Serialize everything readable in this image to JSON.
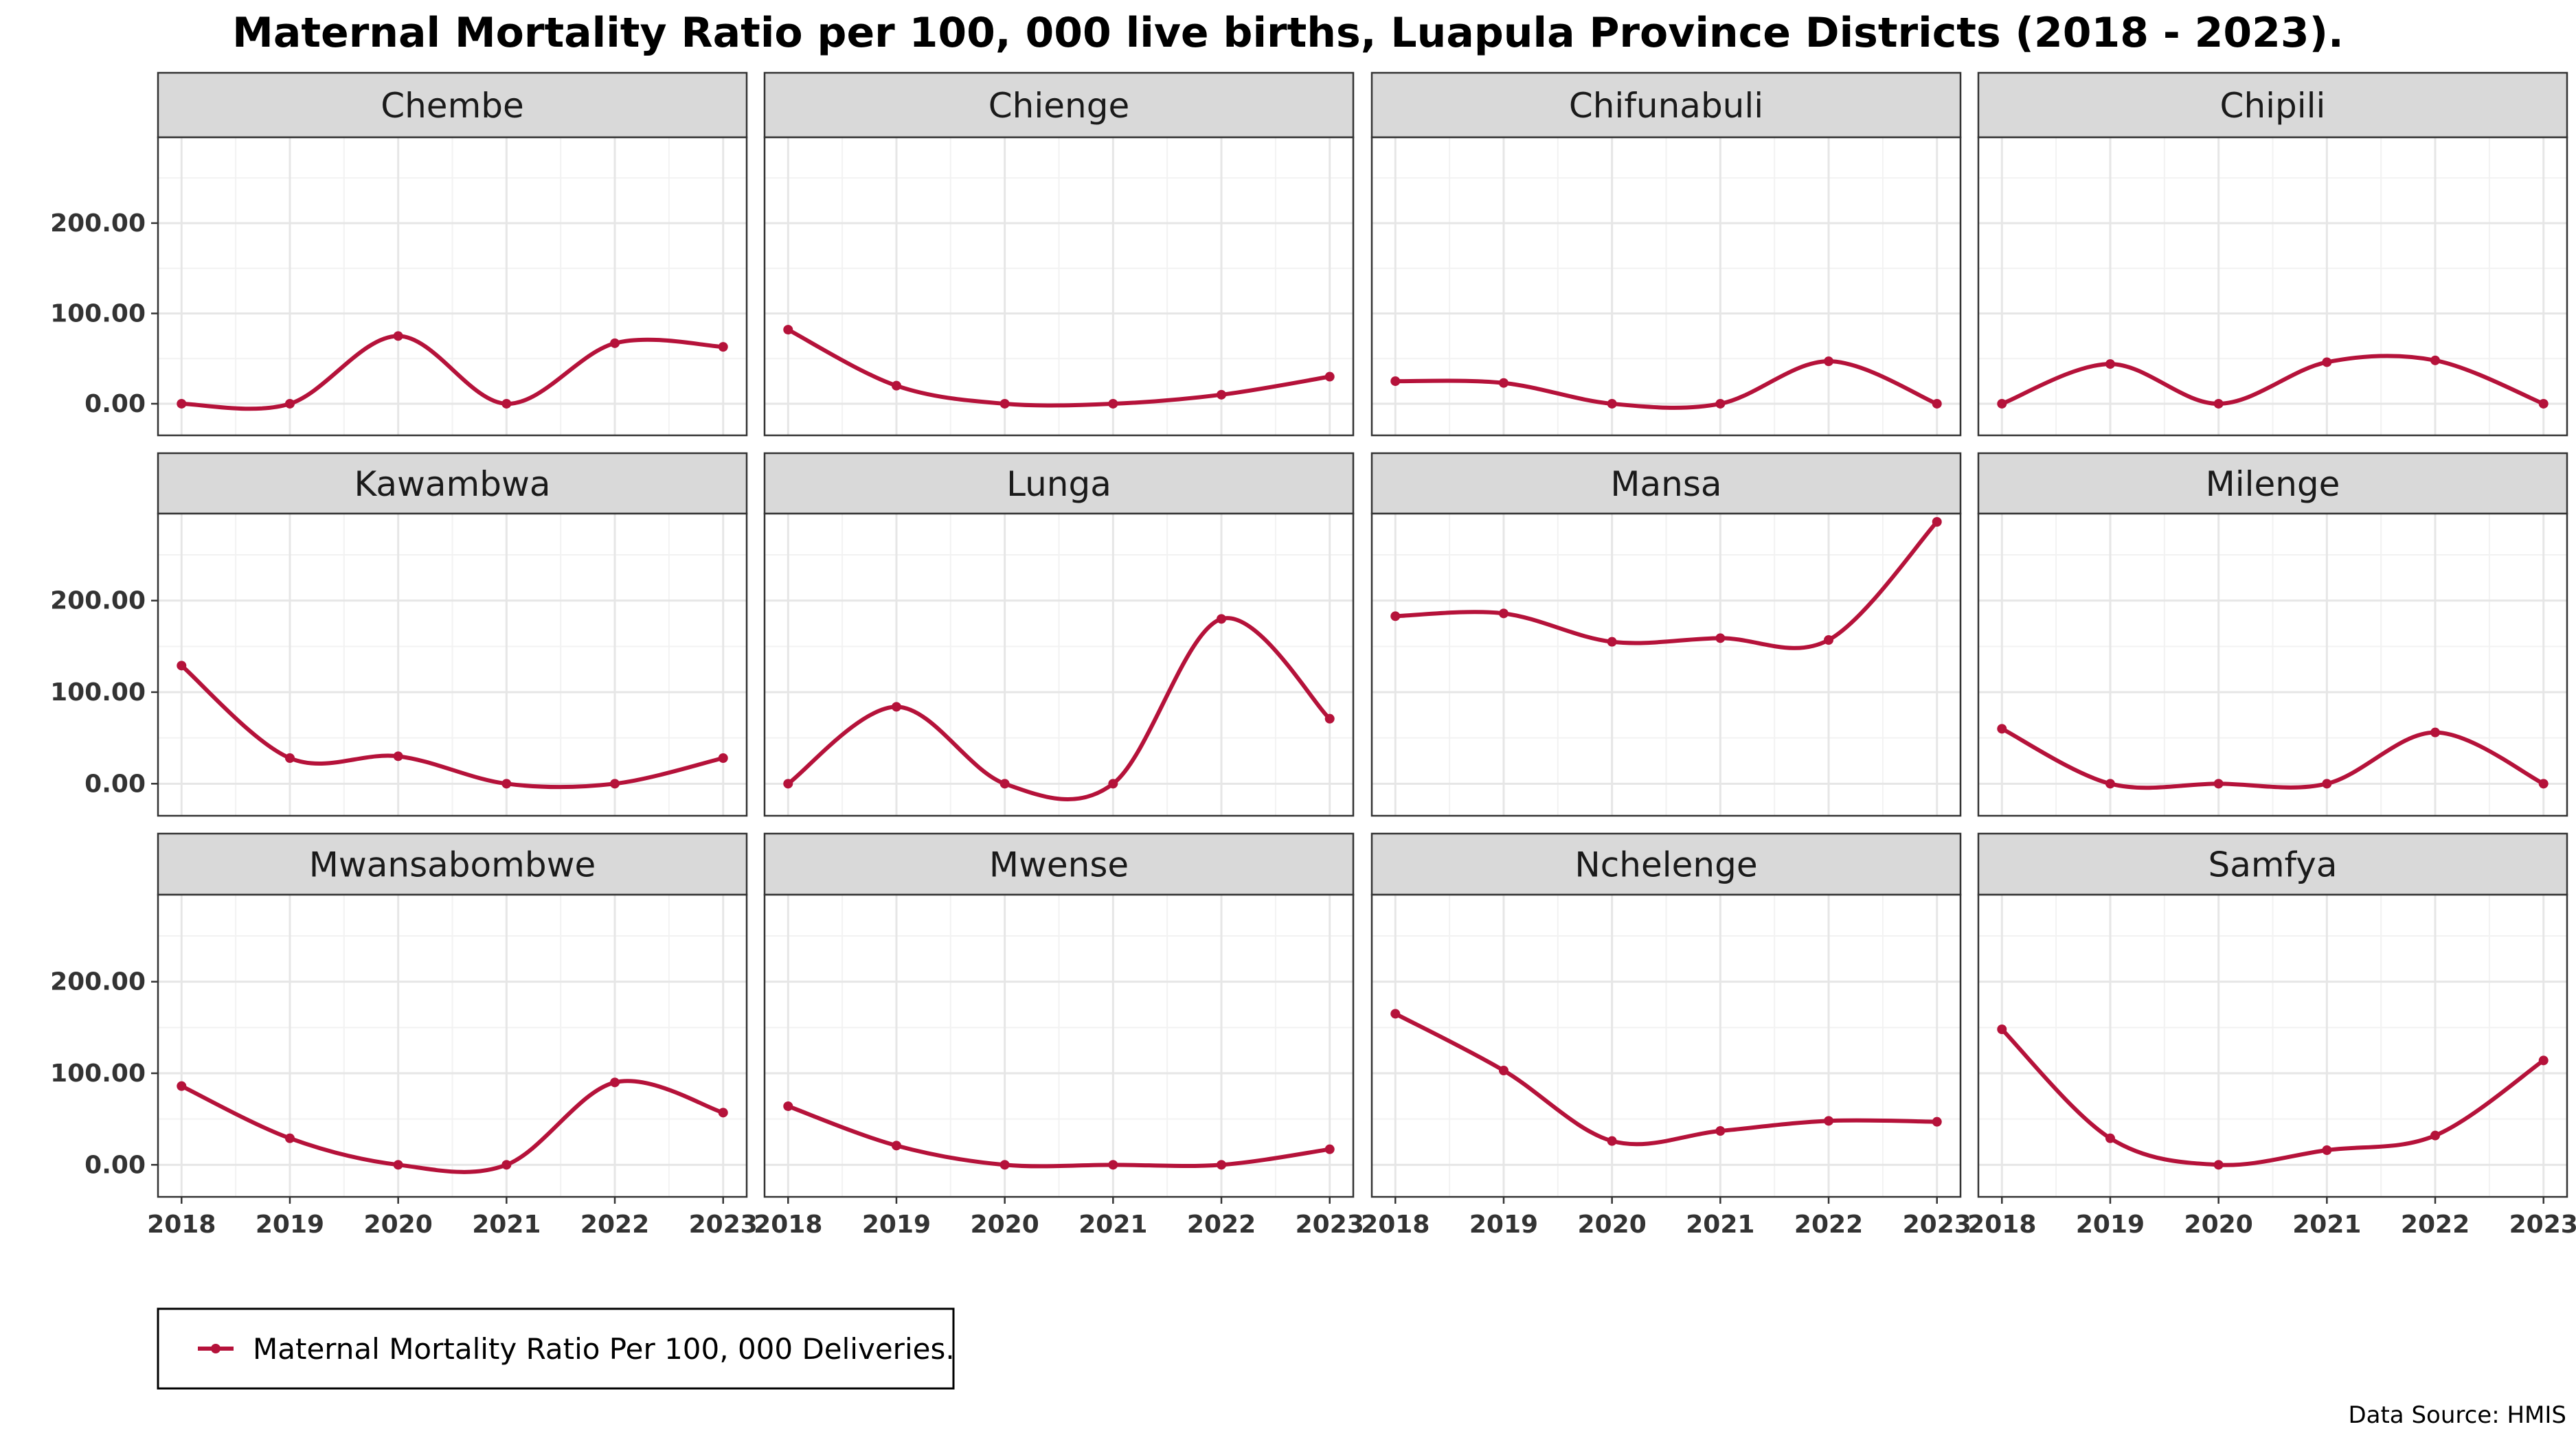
{
  "chart_data": {
    "type": "line",
    "title": "Maternal Mortality Ratio per 100, 000 live births, Luapula Province Districts (2018 - 2023).",
    "x": [
      "2018",
      "2019",
      "2020",
      "2021",
      "2022",
      "2023"
    ],
    "y_ticks": [
      "0.00",
      "100.00",
      "200.00"
    ],
    "ylim": [
      -35,
      295
    ],
    "grid": true,
    "legend": {
      "position": "bottom-left",
      "label": "Maternal Mortality Ratio Per 100, 000 Deliveries."
    },
    "series_color": "#B5123A",
    "source": "Data Source: HMIS",
    "panels": [
      {
        "name": "Chembe",
        "values": [
          0,
          0,
          75,
          0,
          67,
          63
        ]
      },
      {
        "name": "Chienge",
        "values": [
          82,
          20,
          0,
          0,
          10,
          30
        ]
      },
      {
        "name": "Chifunabuli",
        "values": [
          25,
          23,
          0,
          0,
          47,
          0
        ]
      },
      {
        "name": "Chipili",
        "values": [
          0,
          44,
          0,
          46,
          48,
          0
        ]
      },
      {
        "name": "Kawambwa",
        "values": [
          129,
          28,
          30,
          0,
          0,
          28
        ]
      },
      {
        "name": "Lunga",
        "values": [
          0,
          84,
          0,
          0,
          180,
          71
        ]
      },
      {
        "name": "Mansa",
        "values": [
          183,
          186,
          155,
          159,
          157,
          286
        ]
      },
      {
        "name": "Milenge",
        "values": [
          60,
          0,
          0,
          0,
          56,
          0
        ]
      },
      {
        "name": "Mwansabombwe",
        "values": [
          86,
          29,
          0,
          0,
          90,
          57
        ]
      },
      {
        "name": "Mwense",
        "values": [
          64,
          21,
          0,
          0,
          0,
          17
        ]
      },
      {
        "name": "Nchelenge",
        "values": [
          165,
          103,
          26,
          37,
          48,
          47
        ]
      },
      {
        "name": "Samfya",
        "values": [
          148,
          29,
          0,
          16,
          32,
          114
        ]
      }
    ]
  }
}
